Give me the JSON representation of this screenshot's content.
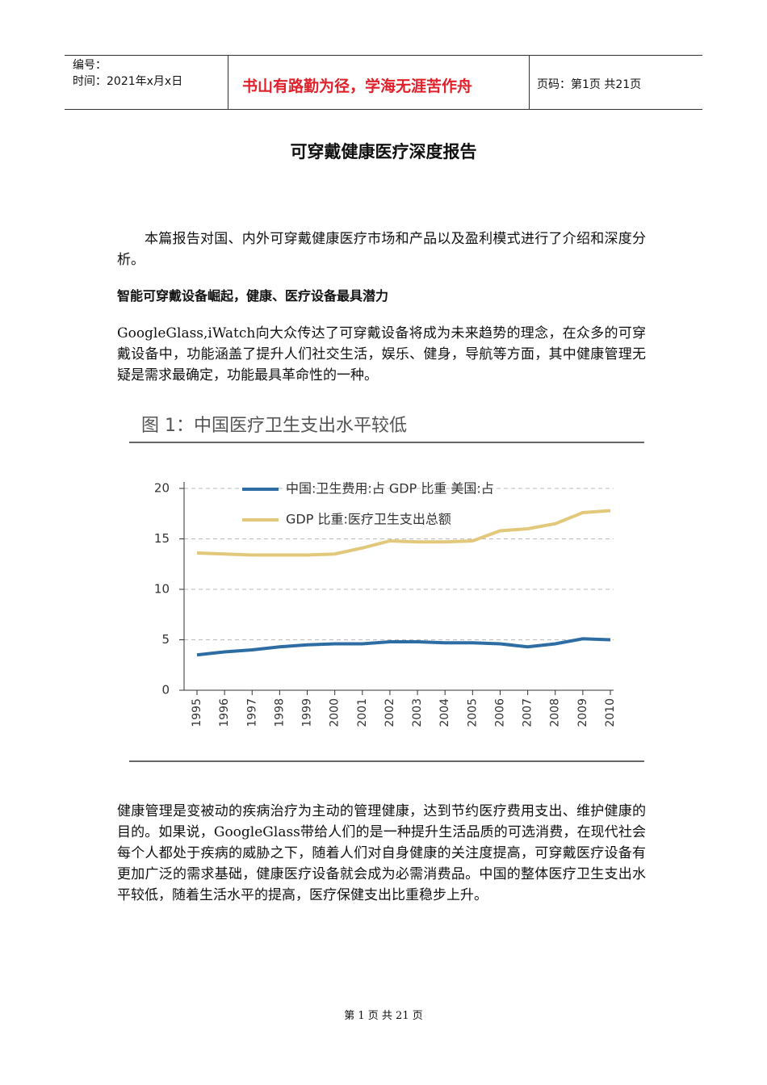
{
  "header": {
    "number_label": "编号：",
    "time": "时间：2021年x月x日",
    "motto": "书山有路勤为径，学海无涯苦作舟",
    "page": "页码：第1页  共21页"
  },
  "title": "可穿戴健康医疗深度报告",
  "intro": "本篇报告对国、内外可穿戴健康医疗市场和产品以及盈利模式进行了介绍和深度分析。",
  "section_heading": "智能可穿戴设备崛起，健康、医疗设备最具潜力",
  "paragraph1": "GoogleGlass,iWatch向大众传达了可穿戴设备将成为未来趋势的理念，在众多的可穿戴设备中，功能涵盖了提升人们社交生活，娱乐、健身，导航等方面，其中健康管理无疑是需求最确定，功能最具革命性的一种。",
  "chart_data": {
    "type": "line",
    "title": "图 1：中国医疗卫生支出水平较低",
    "categories": [
      "1995",
      "1996",
      "1997",
      "1998",
      "1999",
      "2000",
      "2001",
      "2002",
      "2003",
      "2004",
      "2005",
      "2006",
      "2007",
      "2008",
      "2009",
      "2010"
    ],
    "series": [
      {
        "name": "中国:卫生费用:占 GDP 比重 美国:占",
        "color": "#2e6da4",
        "values": [
          3.5,
          3.8,
          4.0,
          4.3,
          4.5,
          4.6,
          4.6,
          4.8,
          4.8,
          4.7,
          4.7,
          4.6,
          4.3,
          4.6,
          5.1,
          5.0
        ]
      },
      {
        "name": "GDP 比重:医疗卫生支出总额",
        "color": "#e2c87a",
        "values": [
          13.6,
          13.5,
          13.4,
          13.4,
          13.4,
          13.5,
          14.1,
          14.8,
          14.7,
          14.7,
          14.8,
          15.8,
          16.0,
          16.5,
          17.6,
          17.8
        ]
      }
    ],
    "ylim": [
      0,
      20
    ],
    "yticks": [
      0,
      5,
      10,
      15,
      20
    ],
    "grid": true
  },
  "paragraph2": "健康管理是变被动的疾病治疗为主动的管理健康，达到节约医疗费用支出、维护健康的目的。如果说，GoogleGlass带给人们的是一种提升生活品质的可选消费，在现代社会每个人都处于疾病的威胁之下，随着人们对自身健康的关注度提高，可穿戴医疗设备有更加广泛的需求基础，健康医疗设备就会成为必需消费品。中国的整体医疗卫生支出水平较低，随着生活水平的提高，医疗保健支出比重稳步上升。",
  "footer": "第 1 页 共 21 页"
}
